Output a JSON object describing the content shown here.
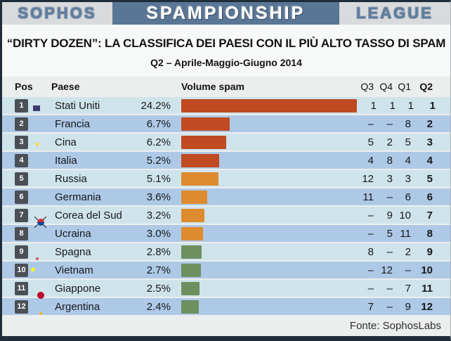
{
  "masthead": {
    "left": "SOPHOS",
    "center": "SPAMPIONSHIP",
    "right": "LEAGUE"
  },
  "title": "“DIRTY DOZEN”: LA CLASSIFICA DEI PAESI CON IL PIÙ ALTO TASSO DI SPAM",
  "subtitle": "Q2 – Aprile-Maggio-Giugno 2014",
  "colors": {
    "masthead_bg": "#5a7695",
    "masthead_side_bg": "#d9dadb",
    "row_light": "#cfe4ea",
    "row_dark": "#aec9e6",
    "badge_bg": "#4b4f56",
    "bar_red": "#c04a21",
    "bar_orange": "#dd8b2e",
    "bar_green": "#6d9060",
    "frame": "#1f2d3a"
  },
  "table": {
    "headers": {
      "pos": "Pos",
      "country": "Paese",
      "volume": "Volume spam",
      "q3": "Q3",
      "q4": "Q4",
      "q1": "Q1",
      "q2": "Q2"
    },
    "rows": [
      {
        "pos": "1",
        "flag": "us",
        "country": "Stati Uniti",
        "pct": "24.2%",
        "value": 24.2,
        "bar_color": "#c04a21",
        "q3": "1",
        "q4": "1",
        "q1": "1",
        "q2": "1"
      },
      {
        "pos": "2",
        "flag": "fr",
        "country": "Francia",
        "pct": "6.7%",
        "value": 6.7,
        "bar_color": "#c04a21",
        "q3": "–",
        "q4": "–",
        "q1": "8",
        "q2": "2"
      },
      {
        "pos": "3",
        "flag": "cn",
        "country": "Cina",
        "pct": "6.2%",
        "value": 6.2,
        "bar_color": "#c04a21",
        "q3": "5",
        "q4": "2",
        "q1": "5",
        "q2": "3"
      },
      {
        "pos": "4",
        "flag": "it",
        "country": "Italia",
        "pct": "5.2%",
        "value": 5.2,
        "bar_color": "#c04a21",
        "q3": "4",
        "q4": "8",
        "q1": "4",
        "q2": "4"
      },
      {
        "pos": "5",
        "flag": "ru",
        "country": "Russia",
        "pct": "5.1%",
        "value": 5.1,
        "bar_color": "#dd8b2e",
        "q3": "12",
        "q4": "3",
        "q1": "3",
        "q2": "5"
      },
      {
        "pos": "6",
        "flag": "de",
        "country": "Germania",
        "pct": "3.6%",
        "value": 3.6,
        "bar_color": "#dd8b2e",
        "q3": "11",
        "q4": "–",
        "q1": "6",
        "q2": "6"
      },
      {
        "pos": "7",
        "flag": "kr",
        "country": "Corea del Sud",
        "pct": "3.2%",
        "value": 3.2,
        "bar_color": "#dd8b2e",
        "q3": "–",
        "q4": "9",
        "q1": "10",
        "q2": "7"
      },
      {
        "pos": "8",
        "flag": "ua",
        "country": "Ucraina",
        "pct": "3.0%",
        "value": 3.0,
        "bar_color": "#dd8b2e",
        "q3": "–",
        "q4": "5",
        "q1": "11",
        "q2": "8"
      },
      {
        "pos": "9",
        "flag": "es",
        "country": "Spagna",
        "pct": "2.8%",
        "value": 2.8,
        "bar_color": "#6d9060",
        "q3": "8",
        "q4": "–",
        "q1": "2",
        "q2": "9"
      },
      {
        "pos": "10",
        "flag": "vn",
        "country": "Vietnam",
        "pct": "2.7%",
        "value": 2.7,
        "bar_color": "#6d9060",
        "q3": "–",
        "q4": "12",
        "q1": "–",
        "q2": "10"
      },
      {
        "pos": "11",
        "flag": "jp",
        "country": "Giappone",
        "pct": "2.5%",
        "value": 2.5,
        "bar_color": "#6d9060",
        "q3": "–",
        "q4": "–",
        "q1": "7",
        "q2": "11"
      },
      {
        "pos": "12",
        "flag": "ar",
        "country": "Argentina",
        "pct": "2.4%",
        "value": 2.4,
        "bar_color": "#6d9060",
        "q3": "7",
        "q4": "–",
        "q1": "9",
        "q2": "12"
      }
    ]
  },
  "footer": {
    "source": "Fonte: SophosLabs"
  },
  "chart_data": {
    "type": "bar",
    "title": "“DIRTY DOZEN”: LA CLASSIFICA DEI PAESI CON IL PIÙ ALTO TASSO DI SPAM",
    "subtitle": "Q2 – Aprile-Maggio-Giugno 2014",
    "categories": [
      "Stati Uniti",
      "Francia",
      "Cina",
      "Italia",
      "Russia",
      "Germania",
      "Corea del Sud",
      "Ucraina",
      "Spagna",
      "Vietnam",
      "Giappone",
      "Argentina"
    ],
    "values": [
      24.2,
      6.7,
      6.2,
      5.2,
      5.1,
      3.6,
      3.2,
      3.0,
      2.8,
      2.7,
      2.5,
      2.4
    ],
    "unit": "%",
    "xlabel": "Volume spam",
    "ylabel": "Paese",
    "xlim": [
      0,
      25
    ],
    "orientation": "horizontal",
    "bar_color_by_rank": {
      "ranks_1_4": "#c04a21",
      "ranks_5_8": "#dd8b2e",
      "ranks_9_12": "#6d9060"
    },
    "rank_history": {
      "Q3": [
        "1",
        "–",
        "5",
        "4",
        "12",
        "11",
        "–",
        "–",
        "8",
        "–",
        "–",
        "7"
      ],
      "Q4": [
        "1",
        "–",
        "2",
        "8",
        "3",
        "–",
        "9",
        "5",
        "–",
        "12",
        "–",
        "–"
      ],
      "Q1": [
        "1",
        "8",
        "5",
        "4",
        "3",
        "6",
        "10",
        "11",
        "2",
        "–",
        "7",
        "9"
      ],
      "Q2": [
        "1",
        "2",
        "3",
        "4",
        "5",
        "6",
        "7",
        "8",
        "9",
        "10",
        "11",
        "12"
      ]
    },
    "source": "Fonte: SophosLabs",
    "legend": false,
    "grid": false
  }
}
